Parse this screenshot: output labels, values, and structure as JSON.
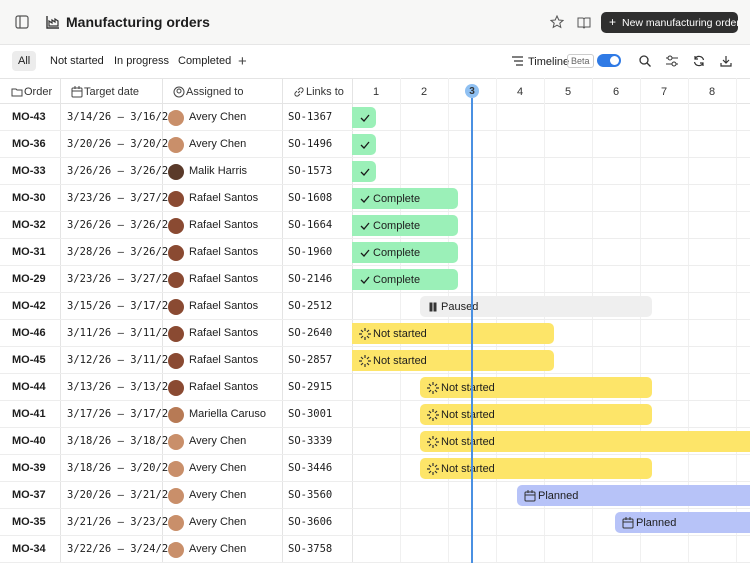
{
  "header": {
    "title": "Manufacturing orders",
    "button": "New manufacturing order"
  },
  "tabs": [
    "All",
    "Not started",
    "In progress",
    "Completed"
  ],
  "toolbar": {
    "timeline": "Timeline",
    "badge": "Beta"
  },
  "table": {
    "columns": [
      "Order",
      "Target date",
      "Assigned to",
      "Links to"
    ],
    "days": [
      1,
      2,
      3,
      4,
      5,
      6,
      7,
      8
    ],
    "rows": [
      [
        "MO-43",
        "3/14/26 – 3/16/26",
        "Avery Chen",
        "SO-1367"
      ],
      [
        "MO-36",
        "3/20/26 – 3/20/26",
        "Avery Chen",
        "SO-1496"
      ],
      [
        "MO-33",
        "3/26/26 – 3/26/26",
        "Malik Harris",
        "SO-1573"
      ],
      [
        "MO-30",
        "3/23/26 – 3/27/26",
        "Rafael Santos",
        "SO-1608"
      ],
      [
        "MO-32",
        "3/26/26 – 3/26/26",
        "Rafael Santos",
        "SO-1664"
      ],
      [
        "MO-31",
        "3/28/26 – 3/26/26",
        "Rafael Santos",
        "SO-1960"
      ],
      [
        "MO-29",
        "3/23/26 – 3/27/26",
        "Rafael Santos",
        "SO-2146"
      ],
      [
        "MO-42",
        "3/15/26 – 3/17/26",
        "Rafael Santos",
        "SO-2512"
      ],
      [
        "MO-46",
        "3/11/26 – 3/11/26",
        "Rafael Santos",
        "SO-2640"
      ],
      [
        "MO-45",
        "3/12/26 – 3/11/26",
        "Rafael Santos",
        "SO-2857"
      ],
      [
        "MO-44",
        "3/13/26 – 3/13/26",
        "Rafael Santos",
        "SO-2915"
      ],
      [
        "MO-41",
        "3/17/26 – 3/17/26",
        "Mariella Caruso",
        "SO-3001"
      ],
      [
        "MO-40",
        "3/18/26 – 3/18/26",
        "Avery Chen",
        "SO-3339"
      ],
      [
        "MO-39",
        "3/18/26 – 3/20/26",
        "Avery Chen",
        "SO-3446"
      ],
      [
        "MO-37",
        "3/20/26 – 3/21/26",
        "Avery Chen",
        "SO-3560"
      ],
      [
        "MO-35",
        "3/21/26 – 3/23/26",
        "Avery Chen",
        "SO-3606"
      ],
      [
        "MO-34",
        "3/22/26 – 3/24/26",
        "Avery Chen",
        "SO-3758"
      ]
    ],
    "bars": [
      null,
      null,
      null,
      "Complete",
      "Complete",
      "Complete",
      "Complete",
      "Paused",
      "Not started",
      "Not started",
      "Not started",
      "Not started",
      "Not started",
      "Not started",
      "Planned",
      "Planned",
      null
    ]
  }
}
